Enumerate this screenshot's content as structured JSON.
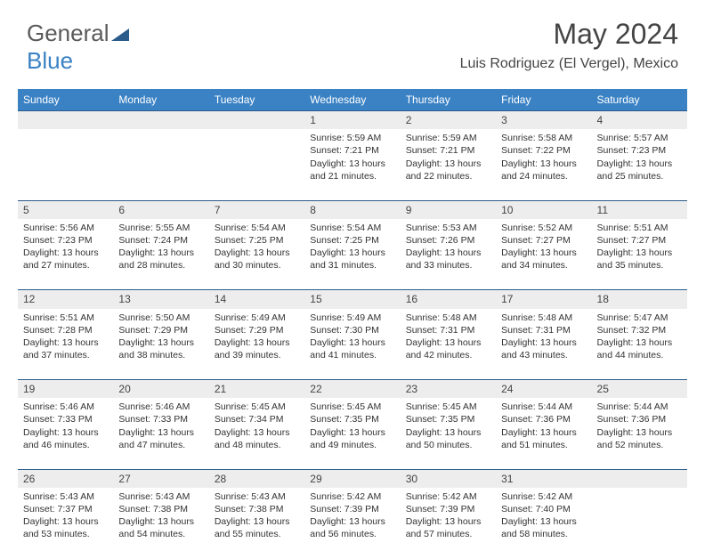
{
  "brand": {
    "part1": "General",
    "part2": "Blue"
  },
  "header": {
    "month": "May 2024",
    "location": "Luis Rodriguez (El Vergel), Mexico"
  },
  "colors": {
    "header_bg": "#3b82c4",
    "header_text": "#ffffff",
    "daynum_bg": "#ededed",
    "cell_text": "#333333",
    "title_text": "#444444",
    "rule": "#2a5b8a",
    "page_bg": "#ffffff"
  },
  "typography": {
    "title_fontsize": 32,
    "location_fontsize": 16,
    "weekday_fontsize": 12,
    "daynum_fontsize": 12,
    "cell_fontsize": 10.5
  },
  "weekdays": [
    "Sunday",
    "Monday",
    "Tuesday",
    "Wednesday",
    "Thursday",
    "Friday",
    "Saturday"
  ],
  "weeks": [
    [
      null,
      null,
      null,
      {
        "n": "1",
        "sr": "Sunrise: 5:59 AM",
        "ss": "Sunset: 7:21 PM",
        "d1": "Daylight: 13 hours",
        "d2": "and 21 minutes."
      },
      {
        "n": "2",
        "sr": "Sunrise: 5:59 AM",
        "ss": "Sunset: 7:21 PM",
        "d1": "Daylight: 13 hours",
        "d2": "and 22 minutes."
      },
      {
        "n": "3",
        "sr": "Sunrise: 5:58 AM",
        "ss": "Sunset: 7:22 PM",
        "d1": "Daylight: 13 hours",
        "d2": "and 24 minutes."
      },
      {
        "n": "4",
        "sr": "Sunrise: 5:57 AM",
        "ss": "Sunset: 7:23 PM",
        "d1": "Daylight: 13 hours",
        "d2": "and 25 minutes."
      }
    ],
    [
      {
        "n": "5",
        "sr": "Sunrise: 5:56 AM",
        "ss": "Sunset: 7:23 PM",
        "d1": "Daylight: 13 hours",
        "d2": "and 27 minutes."
      },
      {
        "n": "6",
        "sr": "Sunrise: 5:55 AM",
        "ss": "Sunset: 7:24 PM",
        "d1": "Daylight: 13 hours",
        "d2": "and 28 minutes."
      },
      {
        "n": "7",
        "sr": "Sunrise: 5:54 AM",
        "ss": "Sunset: 7:25 PM",
        "d1": "Daylight: 13 hours",
        "d2": "and 30 minutes."
      },
      {
        "n": "8",
        "sr": "Sunrise: 5:54 AM",
        "ss": "Sunset: 7:25 PM",
        "d1": "Daylight: 13 hours",
        "d2": "and 31 minutes."
      },
      {
        "n": "9",
        "sr": "Sunrise: 5:53 AM",
        "ss": "Sunset: 7:26 PM",
        "d1": "Daylight: 13 hours",
        "d2": "and 33 minutes."
      },
      {
        "n": "10",
        "sr": "Sunrise: 5:52 AM",
        "ss": "Sunset: 7:27 PM",
        "d1": "Daylight: 13 hours",
        "d2": "and 34 minutes."
      },
      {
        "n": "11",
        "sr": "Sunrise: 5:51 AM",
        "ss": "Sunset: 7:27 PM",
        "d1": "Daylight: 13 hours",
        "d2": "and 35 minutes."
      }
    ],
    [
      {
        "n": "12",
        "sr": "Sunrise: 5:51 AM",
        "ss": "Sunset: 7:28 PM",
        "d1": "Daylight: 13 hours",
        "d2": "and 37 minutes."
      },
      {
        "n": "13",
        "sr": "Sunrise: 5:50 AM",
        "ss": "Sunset: 7:29 PM",
        "d1": "Daylight: 13 hours",
        "d2": "and 38 minutes."
      },
      {
        "n": "14",
        "sr": "Sunrise: 5:49 AM",
        "ss": "Sunset: 7:29 PM",
        "d1": "Daylight: 13 hours",
        "d2": "and 39 minutes."
      },
      {
        "n": "15",
        "sr": "Sunrise: 5:49 AM",
        "ss": "Sunset: 7:30 PM",
        "d1": "Daylight: 13 hours",
        "d2": "and 41 minutes."
      },
      {
        "n": "16",
        "sr": "Sunrise: 5:48 AM",
        "ss": "Sunset: 7:31 PM",
        "d1": "Daylight: 13 hours",
        "d2": "and 42 minutes."
      },
      {
        "n": "17",
        "sr": "Sunrise: 5:48 AM",
        "ss": "Sunset: 7:31 PM",
        "d1": "Daylight: 13 hours",
        "d2": "and 43 minutes."
      },
      {
        "n": "18",
        "sr": "Sunrise: 5:47 AM",
        "ss": "Sunset: 7:32 PM",
        "d1": "Daylight: 13 hours",
        "d2": "and 44 minutes."
      }
    ],
    [
      {
        "n": "19",
        "sr": "Sunrise: 5:46 AM",
        "ss": "Sunset: 7:33 PM",
        "d1": "Daylight: 13 hours",
        "d2": "and 46 minutes."
      },
      {
        "n": "20",
        "sr": "Sunrise: 5:46 AM",
        "ss": "Sunset: 7:33 PM",
        "d1": "Daylight: 13 hours",
        "d2": "and 47 minutes."
      },
      {
        "n": "21",
        "sr": "Sunrise: 5:45 AM",
        "ss": "Sunset: 7:34 PM",
        "d1": "Daylight: 13 hours",
        "d2": "and 48 minutes."
      },
      {
        "n": "22",
        "sr": "Sunrise: 5:45 AM",
        "ss": "Sunset: 7:35 PM",
        "d1": "Daylight: 13 hours",
        "d2": "and 49 minutes."
      },
      {
        "n": "23",
        "sr": "Sunrise: 5:45 AM",
        "ss": "Sunset: 7:35 PM",
        "d1": "Daylight: 13 hours",
        "d2": "and 50 minutes."
      },
      {
        "n": "24",
        "sr": "Sunrise: 5:44 AM",
        "ss": "Sunset: 7:36 PM",
        "d1": "Daylight: 13 hours",
        "d2": "and 51 minutes."
      },
      {
        "n": "25",
        "sr": "Sunrise: 5:44 AM",
        "ss": "Sunset: 7:36 PM",
        "d1": "Daylight: 13 hours",
        "d2": "and 52 minutes."
      }
    ],
    [
      {
        "n": "26",
        "sr": "Sunrise: 5:43 AM",
        "ss": "Sunset: 7:37 PM",
        "d1": "Daylight: 13 hours",
        "d2": "and 53 minutes."
      },
      {
        "n": "27",
        "sr": "Sunrise: 5:43 AM",
        "ss": "Sunset: 7:38 PM",
        "d1": "Daylight: 13 hours",
        "d2": "and 54 minutes."
      },
      {
        "n": "28",
        "sr": "Sunrise: 5:43 AM",
        "ss": "Sunset: 7:38 PM",
        "d1": "Daylight: 13 hours",
        "d2": "and 55 minutes."
      },
      {
        "n": "29",
        "sr": "Sunrise: 5:42 AM",
        "ss": "Sunset: 7:39 PM",
        "d1": "Daylight: 13 hours",
        "d2": "and 56 minutes."
      },
      {
        "n": "30",
        "sr": "Sunrise: 5:42 AM",
        "ss": "Sunset: 7:39 PM",
        "d1": "Daylight: 13 hours",
        "d2": "and 57 minutes."
      },
      {
        "n": "31",
        "sr": "Sunrise: 5:42 AM",
        "ss": "Sunset: 7:40 PM",
        "d1": "Daylight: 13 hours",
        "d2": "and 58 minutes."
      },
      null
    ]
  ]
}
